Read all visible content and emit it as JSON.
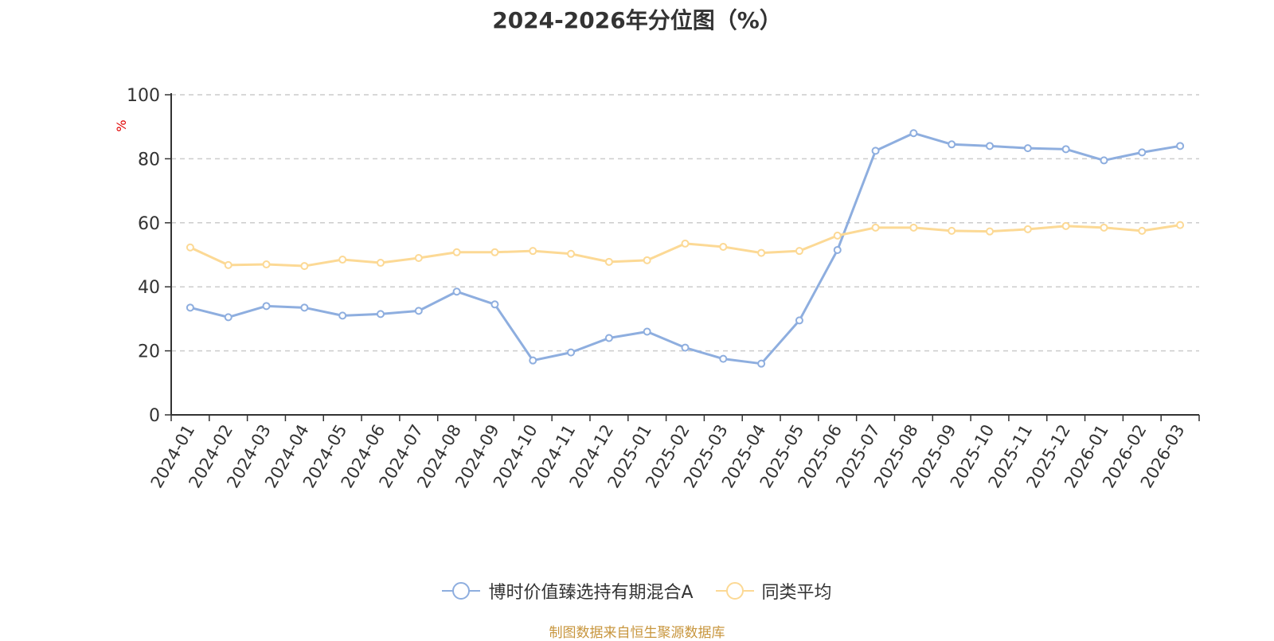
{
  "colors": {
    "fund": "#8eaedf",
    "avg": "#fcd995",
    "axis": "#333333",
    "grid": "#cccccc",
    "yunit": "#e00000",
    "footer": "#c8963e"
  },
  "chart_data": {
    "type": "line",
    "title": "2024-2026年分位图（%）",
    "ylabel": "%",
    "ylim": [
      0,
      100
    ],
    "yticks": [
      "0",
      "20",
      "40",
      "60",
      "80",
      "100"
    ],
    "grid": "horizontal-dashed",
    "legend_position": "bottom",
    "categories": [
      "2024-01",
      "2024-02",
      "2024-03",
      "2024-04",
      "2024-05",
      "2024-06",
      "2024-07",
      "2024-08",
      "2024-09",
      "2024-10",
      "2024-11",
      "2024-12",
      "2025-01",
      "2025-02",
      "2025-03",
      "2025-04",
      "2025-05",
      "2025-06",
      "2025-07",
      "2025-08",
      "2025-09",
      "2025-10",
      "2025-11",
      "2025-12",
      "2026-01",
      "2026-02",
      "2026-03"
    ],
    "series": [
      {
        "name": "博时价值臻选持有期混合A",
        "color": "#8eaedf",
        "values": [
          33.5,
          30.5,
          34,
          33.5,
          31,
          31.5,
          32.5,
          38.5,
          34.5,
          17,
          19.5,
          24,
          26,
          21,
          17.5,
          16,
          29.5,
          51.5,
          82.5,
          88,
          84.5,
          84,
          83.3,
          83,
          79.5,
          82,
          84
        ]
      },
      {
        "name": "同类平均",
        "color": "#fcd995",
        "values": [
          52.3,
          46.8,
          47,
          46.5,
          48.5,
          47.5,
          49,
          50.8,
          50.8,
          51.2,
          50.3,
          47.8,
          48.3,
          53.5,
          52.5,
          50.6,
          51.2,
          56,
          58.5,
          58.5,
          57.5,
          57.3,
          58,
          59,
          58.5,
          57.5,
          59.3
        ]
      }
    ]
  },
  "footer": "制图数据来自恒生聚源数据库"
}
